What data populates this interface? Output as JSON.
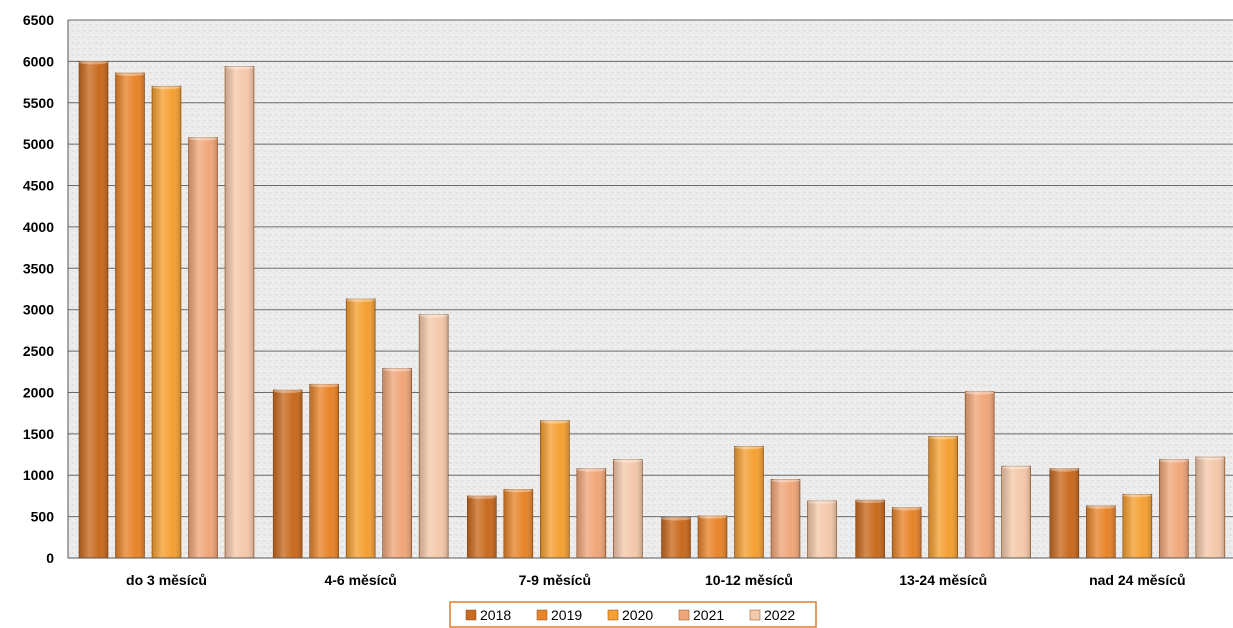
{
  "chart_data": {
    "type": "bar",
    "title": "",
    "xlabel": "",
    "ylabel": "",
    "ylim": [
      0,
      6500
    ],
    "y_ticks": [
      "0",
      "500",
      "1000",
      "1500",
      "2000",
      "2500",
      "3000",
      "3500",
      "4000",
      "4500",
      "5000",
      "5500",
      "6000",
      "6500"
    ],
    "grid": true,
    "legend_position": "bottom",
    "categories": [
      "do 3 měsíců",
      "4-6 měsíců",
      "7-9 měsíců",
      "10-12 měsíců",
      "13-24 měsíců",
      "nad 24 měsíců"
    ],
    "series": [
      {
        "name": "2018",
        "color": "#c96a1e",
        "values": [
          6000,
          2030,
          750,
          490,
          700,
          1080
        ]
      },
      {
        "name": "2019",
        "color": "#e8842a",
        "values": [
          5860,
          2100,
          830,
          510,
          610,
          630
        ]
      },
      {
        "name": "2020",
        "color": "#f5a032",
        "values": [
          5700,
          3130,
          1660,
          1350,
          1470,
          770
        ]
      },
      {
        "name": "2021",
        "color": "#f0a679",
        "values": [
          5080,
          2290,
          1080,
          950,
          2010,
          1190
        ]
      },
      {
        "name": "2022",
        "color": "#f4c8aa",
        "values": [
          5940,
          2940,
          1190,
          690,
          1110,
          1220
        ]
      }
    ]
  }
}
